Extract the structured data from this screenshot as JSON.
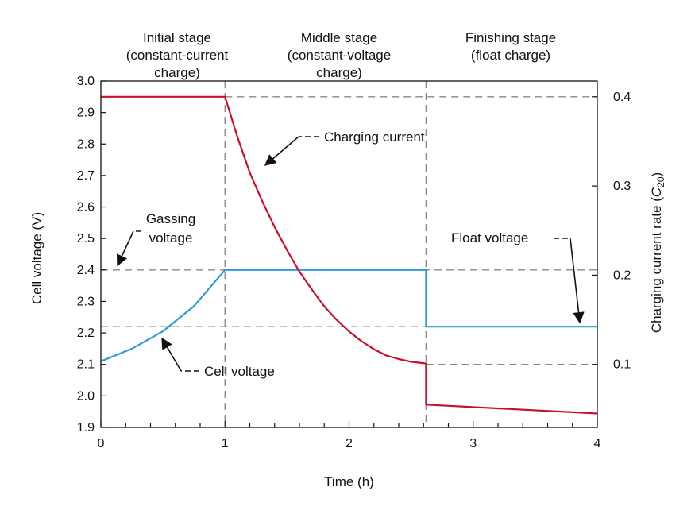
{
  "chart_data": {
    "type": "line",
    "xlabel": "Time (h)",
    "ylabel": "Cell voltage (V)",
    "y2label_main": "Charging current rate (",
    "y2label_italic": "C",
    "y2label_sub": "20",
    "y2label_close": ")",
    "xlim": [
      0,
      4
    ],
    "ylim": [
      1.9,
      3.0
    ],
    "y2lim": [
      0.0,
      0.4
    ],
    "x_ticks": [
      "0",
      "1",
      "2",
      "3",
      "4"
    ],
    "x_tick_values": [
      0,
      1,
      2,
      3,
      4
    ],
    "y_ticks": [
      "1.9",
      "2.0",
      "2.1",
      "2.2",
      "2.3",
      "2.4",
      "2.5",
      "2.6",
      "2.7",
      "2.8",
      "2.9",
      "3.0"
    ],
    "y_tick_values": [
      1.9,
      2.0,
      2.1,
      2.2,
      2.3,
      2.4,
      2.5,
      2.6,
      2.7,
      2.8,
      2.9,
      3.0
    ],
    "y2_ticks": [
      "0.1",
      "0.2",
      "0.3",
      "0.4"
    ],
    "y2_tick_values": [
      0.1,
      0.2,
      0.3,
      0.4
    ],
    "stages": [
      {
        "lines": [
          "Initial stage",
          "(constant-current",
          "charge)"
        ]
      },
      {
        "lines": [
          "Middle stage",
          "(constant-voltage",
          "charge)"
        ]
      },
      {
        "lines": [
          "Finishing stage",
          "(float charge)"
        ]
      }
    ],
    "stage_boundaries": [
      1.0,
      2.62
    ],
    "reference_lines_voltage": [
      2.4,
      2.22
    ],
    "reference_lines_current": [
      0.4,
      0.1
    ],
    "series": [
      {
        "name": "Cell voltage",
        "axis": "left",
        "color": "#2e9bd6",
        "points": [
          [
            0.0,
            2.11
          ],
          [
            0.25,
            2.15
          ],
          [
            0.5,
            2.205
          ],
          [
            0.75,
            2.285
          ],
          [
            1.0,
            2.4
          ],
          [
            1.0,
            2.4
          ],
          [
            2.62,
            2.4
          ],
          [
            2.62,
            2.22
          ],
          [
            4.0,
            2.22
          ]
        ]
      },
      {
        "name": "Charging current",
        "axis": "right",
        "color": "#c8102e",
        "points": [
          [
            0.0,
            0.4
          ],
          [
            1.0,
            0.4
          ],
          [
            1.1,
            0.355
          ],
          [
            1.2,
            0.315
          ],
          [
            1.3,
            0.283
          ],
          [
            1.4,
            0.254
          ],
          [
            1.5,
            0.228
          ],
          [
            1.6,
            0.204
          ],
          [
            1.7,
            0.184
          ],
          [
            1.8,
            0.165
          ],
          [
            1.9,
            0.15
          ],
          [
            2.0,
            0.137
          ],
          [
            2.1,
            0.126
          ],
          [
            2.2,
            0.117
          ],
          [
            2.3,
            0.11
          ],
          [
            2.4,
            0.106
          ],
          [
            2.5,
            0.103
          ],
          [
            2.62,
            0.101
          ],
          [
            2.62,
            0.055
          ],
          [
            4.0,
            0.045
          ]
        ]
      }
    ],
    "annotations": [
      {
        "lines": [
          "Charging current"
        ],
        "target": "current"
      },
      {
        "lines": [
          "Gassing",
          "voltage"
        ],
        "target": "gassing"
      },
      {
        "lines": [
          "Float voltage"
        ],
        "target": "float"
      },
      {
        "lines": [
          "Cell voltage"
        ],
        "target": "cell"
      }
    ]
  }
}
